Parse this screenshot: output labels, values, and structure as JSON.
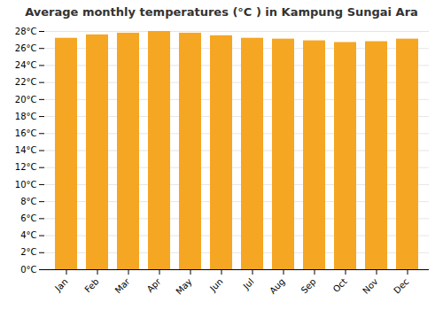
{
  "chart_data": {
    "type": "bar",
    "title": "Average monthly temperatures (°C ) in Kampung Sungai Ara",
    "categories": [
      "Jan",
      "Feb",
      "Mar",
      "Apr",
      "May",
      "Jun",
      "Jul",
      "Aug",
      "Sep",
      "Oct",
      "Nov",
      "Dec"
    ],
    "values": [
      27.2,
      27.6,
      27.8,
      28.0,
      27.8,
      27.5,
      27.2,
      27.1,
      26.9,
      26.7,
      26.8,
      27.1
    ],
    "color": "#F5A623",
    "ylim": [
      0,
      28
    ],
    "yticks": [
      {
        "value": 0,
        "label": "0°C"
      },
      {
        "value": 2,
        "label": "2°C"
      },
      {
        "value": 4,
        "label": "4°C"
      },
      {
        "value": 6,
        "label": "6°C"
      },
      {
        "value": 8,
        "label": "8°C"
      },
      {
        "value": 10,
        "label": "10°C"
      },
      {
        "value": 12,
        "label": "12°C"
      },
      {
        "value": 14,
        "label": "14°C"
      },
      {
        "value": 16,
        "label": "16°C"
      },
      {
        "value": 18,
        "label": "18°C"
      },
      {
        "value": 20,
        "label": "20°C"
      },
      {
        "value": 22,
        "label": "22°C"
      },
      {
        "value": 24,
        "label": "24°C"
      },
      {
        "value": 26,
        "label": "26°C"
      },
      {
        "value": 28,
        "label": "28°C"
      }
    ],
    "grid": true
  }
}
